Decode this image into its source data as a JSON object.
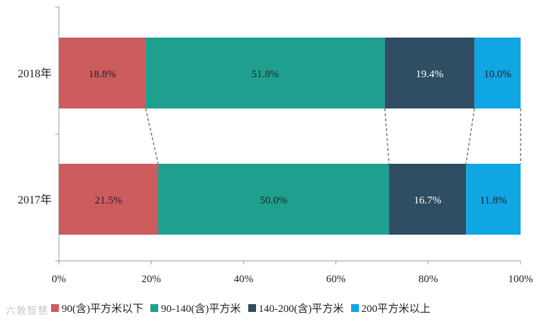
{
  "chart_data": {
    "type": "bar",
    "orientation": "horizontal",
    "stacked": true,
    "categories": [
      "2018年",
      "2017年"
    ],
    "series": [
      {
        "name": "90(含)平方米以下",
        "values": [
          18.8,
          21.5
        ],
        "labels": [
          "18.8%",
          "21.5%"
        ],
        "color": "#cd5c5f"
      },
      {
        "name": "90-140(含)平方米",
        "values": [
          51.8,
          50.0
        ],
        "labels": [
          "51.8%",
          "50.0%"
        ],
        "color": "#1fa08e"
      },
      {
        "name": "140-200(含)平方米",
        "values": [
          19.4,
          16.7
        ],
        "labels": [
          "19.4%",
          "16.7%"
        ],
        "color": "#2f4d63"
      },
      {
        "name": "200平方米以上",
        "values": [
          10.0,
          11.8
        ],
        "labels": [
          "10.0%",
          "11.8%"
        ],
        "color": "#10a5e3"
      }
    ],
    "x_ticks": [
      "0%",
      "20%",
      "40%",
      "60%",
      "80%",
      "100%"
    ],
    "xlim": [
      0,
      100
    ],
    "grid": false,
    "connector_lines": "dashed",
    "legend_position": "bottom"
  },
  "watermark": "六敦智慧"
}
